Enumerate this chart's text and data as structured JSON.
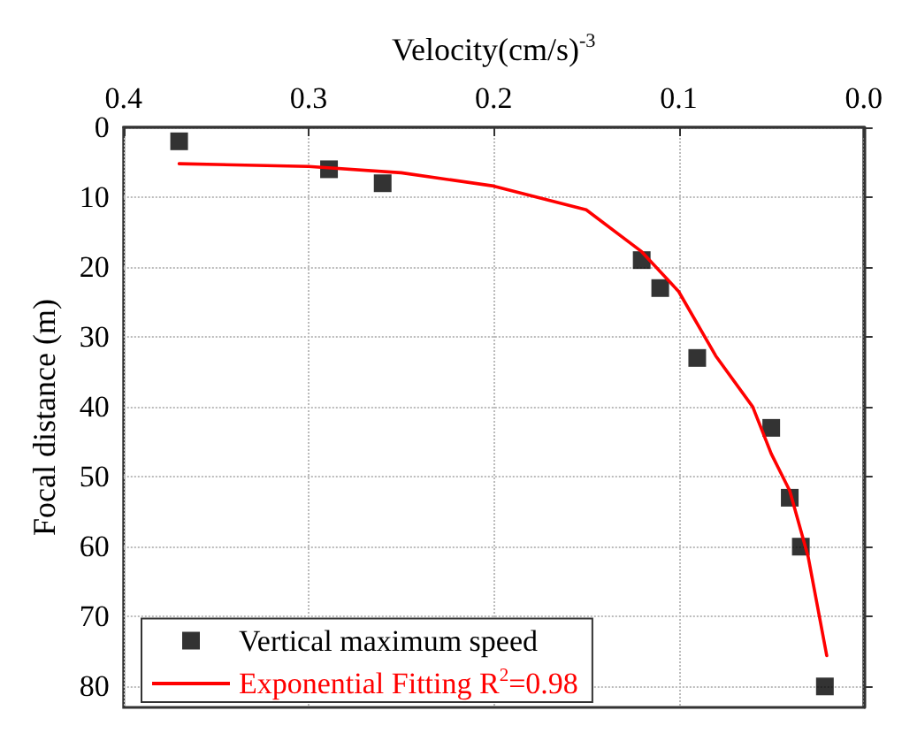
{
  "chart_data": {
    "type": "scatter",
    "xlabel": "Velocity(cm/s)$^{-3}$",
    "ylabel": "Focal distance (m)",
    "xlim": [
      0.4,
      0.0
    ],
    "xticks": [
      0.4,
      0.3,
      0.2,
      0.1,
      {
        "value": 0,
        "label": "0.0"
      }
    ],
    "ylim": [
      83,
      0
    ],
    "yticks": [
      0,
      10,
      20,
      30,
      40,
      50,
      60,
      70,
      80
    ],
    "grid": true,
    "legend": "bottom left",
    "marker": "square",
    "series": [
      {
        "name": "Vertical maximum speed",
        "color": "#000000",
        "x": [
          0.37,
          0.289,
          0.26,
          0.12,
          0.11,
          0.09,
          0.05,
          0.04,
          0.034,
          0.021
        ],
        "values": [
          2,
          6,
          8,
          19,
          23,
          33,
          43,
          53,
          60,
          80
        ]
      },
      {
        "name": "Exponential Fitting R$^{2}$=0.98",
        "type": "line",
        "marker": "none",
        "line_style": "solid",
        "color": "#ff0000",
        "x": [
          0.37,
          0.3,
          0.25,
          0.2,
          0.15,
          0.12,
          0.1,
          0.08,
          0.06,
          0.05,
          0.04,
          0.03,
          0.02
        ],
        "values": [
          5.2,
          5.6,
          6.5,
          8.4,
          11.8,
          17.8,
          23.5,
          32.7,
          40,
          46.7,
          52,
          61.5,
          75.6
        ]
      }
    ]
  }
}
